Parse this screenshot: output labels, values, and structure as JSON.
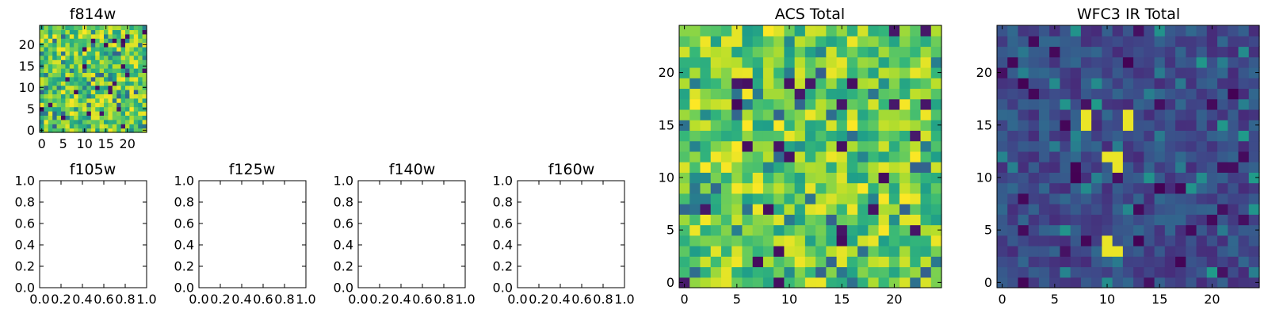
{
  "chart_data": [
    {
      "type": "heatmap",
      "title": "f814w",
      "xlim": [
        -0.5,
        24.5
      ],
      "ylim": [
        -0.5,
        24.5
      ],
      "xticks": [
        0,
        5,
        10,
        15,
        20
      ],
      "yticks": [
        0,
        5,
        10,
        15,
        20
      ],
      "xtick_labels": [
        "0",
        "5",
        "10",
        "15",
        "20"
      ],
      "ytick_labels": [
        "0",
        "5",
        "10",
        "15",
        "20"
      ],
      "colormap": "viridis",
      "grid": false,
      "description": "25x25 pixel noise image, mostly green-yellow"
    },
    {
      "type": "heatmap",
      "title": "f105w",
      "empty": true,
      "xlim": [
        0,
        1
      ],
      "ylim": [
        0,
        1
      ],
      "xtick_labels": [
        "0.0",
        "0.2",
        "0.4",
        "0.6",
        "0.8",
        "1.0"
      ],
      "ytick_labels": [
        "0.0",
        "0.2",
        "0.4",
        "0.6",
        "0.8",
        "1.0"
      ]
    },
    {
      "type": "heatmap",
      "title": "f125w",
      "empty": true,
      "xlim": [
        0,
        1
      ],
      "ylim": [
        0,
        1
      ],
      "xtick_labels": [
        "0.0",
        "0.2",
        "0.4",
        "0.6",
        "0.8",
        "1.0"
      ],
      "ytick_labels": [
        "0.0",
        "0.2",
        "0.4",
        "0.6",
        "0.8",
        "1.0"
      ]
    },
    {
      "type": "heatmap",
      "title": "f140w",
      "empty": true,
      "xlim": [
        0,
        1
      ],
      "ylim": [
        0,
        1
      ],
      "xtick_labels": [
        "0.0",
        "0.2",
        "0.4",
        "0.6",
        "0.8",
        "1.0"
      ],
      "ytick_labels": [
        "0.0",
        "0.2",
        "0.4",
        "0.6",
        "0.8",
        "1.0"
      ]
    },
    {
      "type": "heatmap",
      "title": "f160w",
      "empty": true,
      "xlim": [
        0,
        1
      ],
      "ylim": [
        0,
        1
      ],
      "xtick_labels": [
        "0.0",
        "0.2",
        "0.4",
        "0.6",
        "0.8",
        "1.0"
      ],
      "ytick_labels": [
        "0.0",
        "0.2",
        "0.4",
        "0.6",
        "0.8",
        "1.0"
      ]
    },
    {
      "type": "heatmap",
      "title": "ACS Total",
      "xlim": [
        -0.5,
        24.5
      ],
      "ylim": [
        -0.5,
        24.5
      ],
      "xticks": [
        0,
        5,
        10,
        15,
        20
      ],
      "yticks": [
        0,
        5,
        10,
        15,
        20
      ],
      "xtick_labels": [
        "0",
        "5",
        "10",
        "15",
        "20"
      ],
      "ytick_labels": [
        "0",
        "5",
        "10",
        "15",
        "20"
      ],
      "colormap": "viridis",
      "grid": false,
      "description": "25x25 pixel noise image, mostly green-yellow"
    },
    {
      "type": "heatmap",
      "title": "WFC3 IR Total",
      "xlim": [
        -0.5,
        24.5
      ],
      "ylim": [
        -0.5,
        24.5
      ],
      "xticks": [
        0,
        5,
        10,
        15,
        20
      ],
      "yticks": [
        0,
        5,
        10,
        15,
        20
      ],
      "xtick_labels": [
        "0",
        "5",
        "10",
        "15",
        "20"
      ],
      "ytick_labels": [
        "0",
        "5",
        "10",
        "15",
        "20"
      ],
      "colormap": "viridis",
      "grid": false,
      "description": "25x25 pixel dark noise image with bright sources",
      "bright_pixels": [
        {
          "x": 8,
          "y": 15
        },
        {
          "x": 8,
          "y": 16
        },
        {
          "x": 12,
          "y": 15
        },
        {
          "x": 12,
          "y": 16
        },
        {
          "x": 10,
          "y": 12
        },
        {
          "x": 11,
          "y": 12
        },
        {
          "x": 11,
          "y": 11
        },
        {
          "x": 10,
          "y": 3
        },
        {
          "x": 11,
          "y": 3
        },
        {
          "x": 10,
          "y": 4
        }
      ]
    }
  ]
}
